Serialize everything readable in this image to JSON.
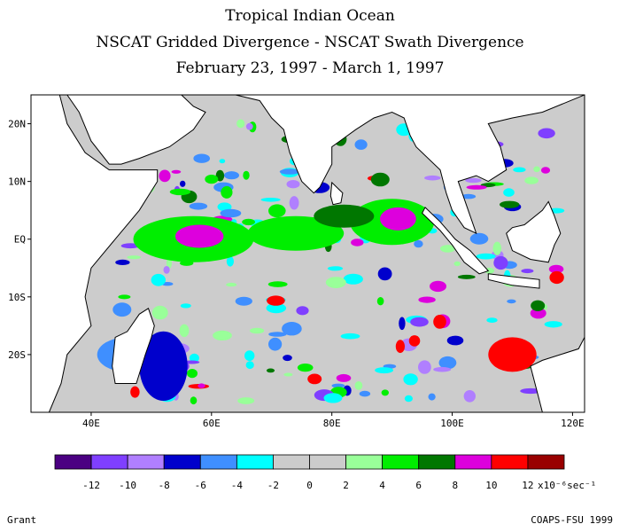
{
  "titles": {
    "line1": "Tropical Indian Ocean",
    "line2": "NSCAT Gridded Divergence - NSCAT Swath Divergence",
    "line3": "February 23, 1997 - March 1, 1997"
  },
  "map": {
    "lon_range": [
      30,
      122
    ],
    "lat_range": [
      -30,
      25
    ],
    "lon_ticks": [
      {
        "value": 40,
        "label": "40E"
      },
      {
        "value": 60,
        "label": "60E"
      },
      {
        "value": 80,
        "label": "80E"
      },
      {
        "value": 100,
        "label": "100E"
      },
      {
        "value": 120,
        "label": "120E"
      }
    ],
    "lat_ticks": [
      {
        "value": 20,
        "label": "20N"
      },
      {
        "value": 10,
        "label": "10N"
      },
      {
        "value": 0,
        "label": "EQ"
      },
      {
        "value": -10,
        "label": "10S"
      },
      {
        "value": -20,
        "label": "20S"
      }
    ],
    "colors": {
      "land": "#ffffff",
      "no_data": "#ffffff",
      "neutral": "#cccccc",
      "coastline": "#000000"
    }
  },
  "colorbar": {
    "colors": [
      "#4b0082",
      "#7f3fff",
      "#b07fff",
      "#0000cc",
      "#3f8fff",
      "#00ffff",
      "#cccccc",
      "#cccccc",
      "#99ff99",
      "#00ee00",
      "#007700",
      "#dd00dd",
      "#ff0000",
      "#990000"
    ],
    "tick_labels": [
      "-12",
      "-10",
      "-8",
      "-6",
      "-4",
      "-2",
      "0",
      "2",
      "4",
      "6",
      "8",
      "10",
      "12"
    ],
    "units": "x10⁻⁶sec⁻¹"
  },
  "footer": {
    "left": "Grant",
    "right": "COAPS-FSU 1999"
  }
}
